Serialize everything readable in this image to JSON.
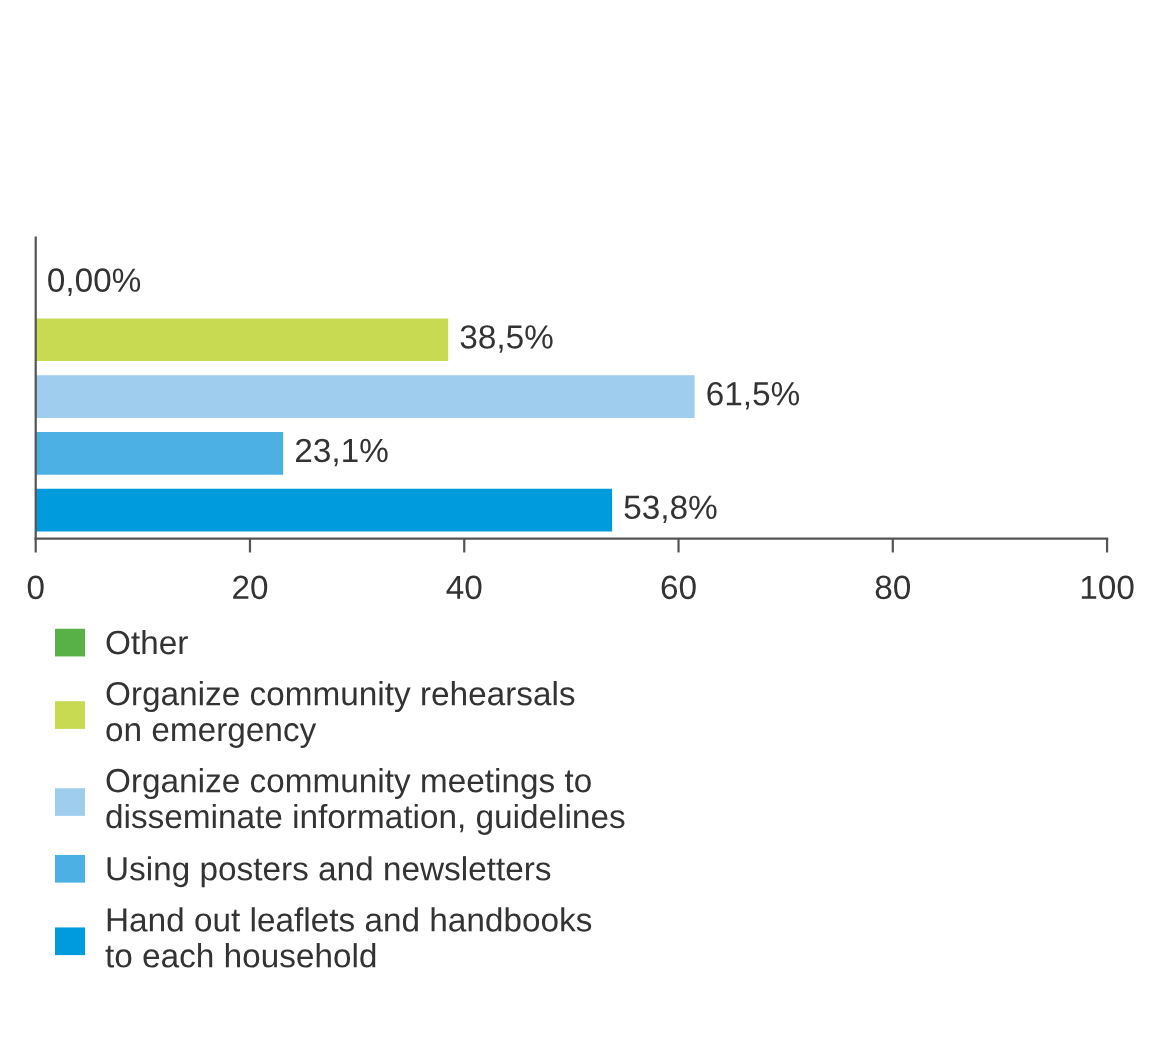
{
  "chart_data": {
    "type": "bar",
    "orientation": "horizontal",
    "categories": [
      null,
      null,
      null,
      null,
      null
    ],
    "series": [
      {
        "name": "Other",
        "color": "#57b146",
        "values": [
          0,
          null,
          null,
          null,
          null
        ],
        "value_labels": [
          "0,00%",
          null,
          null,
          null,
          null
        ]
      },
      {
        "name": "Organize community rehearsals\non emergency",
        "color": "#c8d952",
        "values": [
          null,
          38.5,
          null,
          null,
          null
        ],
        "value_labels": [
          null,
          "38,5%",
          null,
          null,
          null
        ]
      },
      {
        "name": "Organize community meetings to\ndisseminate information, guidelines",
        "color": "#9ecdee",
        "values": [
          null,
          null,
          61.5,
          null,
          null
        ],
        "value_labels": [
          null,
          null,
          "61,5%",
          null,
          null
        ]
      },
      {
        "name": "Using posters and newsletters",
        "color": "#4cb0e4",
        "values": [
          null,
          null,
          null,
          23.1,
          null
        ],
        "value_labels": [
          null,
          null,
          null,
          "23,1%",
          null
        ]
      },
      {
        "name": "Hand out leaflets and handbooks\nto each household",
        "color": "#009bdc",
        "values": [
          null,
          null,
          null,
          null,
          53.8
        ],
        "value_labels": [
          null,
          null,
          null,
          null,
          "53,8%"
        ]
      }
    ],
    "xlim": [
      0,
      100
    ],
    "xticks": [
      0,
      20,
      40,
      60,
      80,
      100
    ],
    "grid": false,
    "legend": "bottom"
  }
}
